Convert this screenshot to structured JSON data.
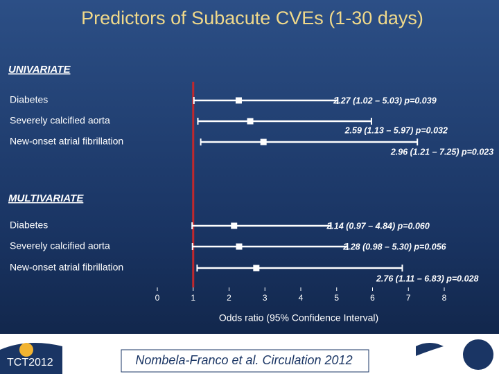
{
  "title": "Predictors of Subacute CVEs (1-30 days)",
  "footer": {
    "citation": "Nombela-Franco et al. Circulation 2012",
    "logo": "TCT2012"
  },
  "chart_data": {
    "type": "forest",
    "xlabel": "Odds ratio (95% Confidence Interval)",
    "xlim": [
      0,
      8
    ],
    "xticks": [
      0,
      1,
      2,
      3,
      4,
      5,
      6,
      7,
      8
    ],
    "reference_line": 1,
    "reference_color": "#c0282d",
    "color": "#ffffff",
    "groups": [
      {
        "name": "UNIVARIATE",
        "categories": [
          "Diabetes",
          "Severely calcified aorta",
          "New-onset atrial fibrillation"
        ],
        "values": [
          2.27,
          2.59,
          2.96
        ],
        "low": [
          1.02,
          1.13,
          1.21
        ],
        "high": [
          5.03,
          5.97,
          7.25
        ],
        "value_labels": [
          "2.27 (1.02 – 5.03) p=0.039",
          "2.59 (1.13 – 5.97) p=0.032",
          "2.96 (1.21 – 7.25) p=0.023"
        ]
      },
      {
        "name": "MULTIVARIATE",
        "categories": [
          "Diabetes",
          "Severely calcified aorta",
          "New-onset atrial fibrillation"
        ],
        "values": [
          2.14,
          2.28,
          2.76
        ],
        "low": [
          0.97,
          0.98,
          1.11
        ],
        "high": [
          4.84,
          5.3,
          6.83
        ],
        "value_labels": [
          "2.14 (0.97 – 4.84) p=0.060",
          "2.28 (0.98 – 5.30) p=0.056",
          "2.76 (1.11 – 6.83) p=0.028"
        ]
      }
    ]
  }
}
